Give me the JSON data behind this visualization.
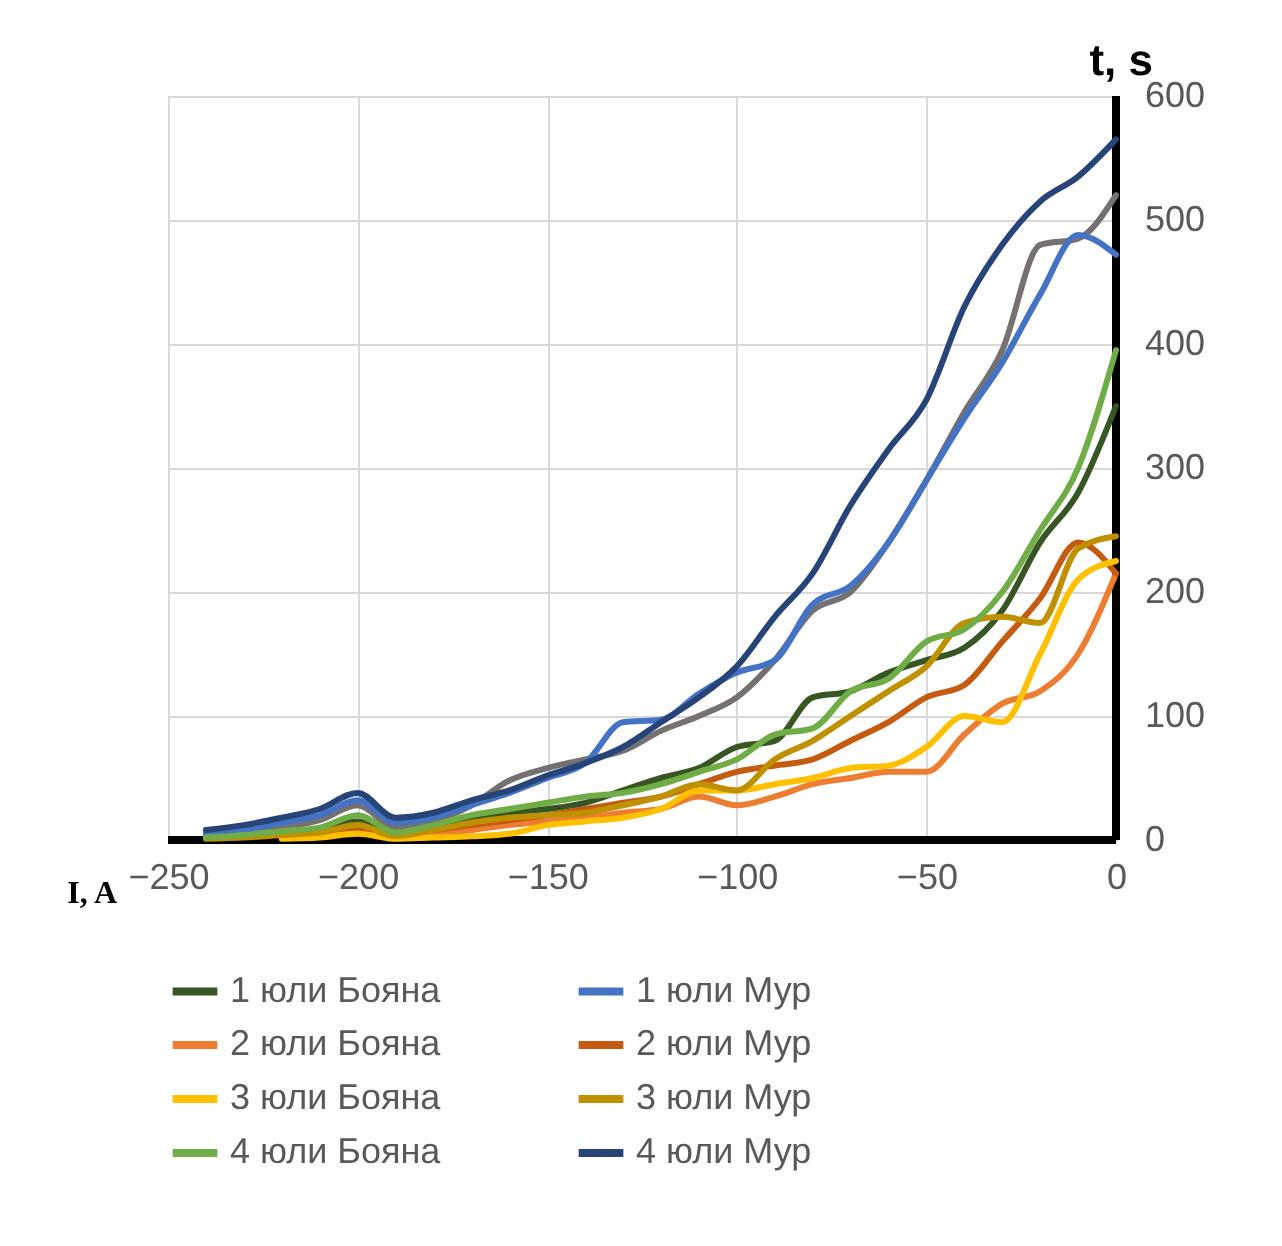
{
  "chart_data": {
    "type": "line",
    "xlabel": "I, A",
    "ylabel": "t, s",
    "x": [
      -240,
      -230,
      -220,
      -210,
      -200,
      -190,
      -180,
      -170,
      -160,
      -150,
      -140,
      -130,
      -120,
      -110,
      -100,
      -90,
      -80,
      -70,
      -60,
      -50,
      -40,
      -30,
      -20,
      -10,
      0
    ],
    "xlim": [
      -250,
      0
    ],
    "xticks": [
      -250,
      -200,
      -150,
      -100,
      -50,
      0
    ],
    "ylim": [
      0,
      600
    ],
    "yticks": [
      0,
      100,
      200,
      300,
      400,
      500,
      600
    ],
    "grid": true,
    "legend": "bottom",
    "line_style": "solid",
    "marker": "none",
    "series": [
      {
        "name": "1 юли Бояна",
        "color": "#375623",
        "values": [
          2,
          3,
          6,
          9,
          15,
          5,
          12,
          18,
          22,
          25,
          30,
          40,
          50,
          58,
          75,
          80,
          115,
          120,
          135,
          145,
          155,
          185,
          240,
          280,
          350
        ]
      },
      {
        "name": "1 юли Мур",
        "color": "#4472c4",
        "values": [
          5,
          8,
          14,
          20,
          32,
          14,
          18,
          28,
          38,
          50,
          62,
          95,
          97,
          118,
          135,
          145,
          190,
          205,
          240,
          290,
          340,
          385,
          440,
          488,
          472
        ]
      },
      {
        "name": "2 юли Бояна",
        "color": "#ed7d31",
        "values": [
          null,
          null,
          2,
          3,
          8,
          2,
          4,
          8,
          12,
          15,
          18,
          22,
          25,
          35,
          28,
          35,
          45,
          50,
          55,
          55,
          85,
          110,
          120,
          150,
          215
        ]
      },
      {
        "name": "2 юли Мур",
        "color": "#c55a11",
        "values": [
          null,
          null,
          5,
          7,
          10,
          3,
          8,
          12,
          16,
          20,
          25,
          30,
          35,
          45,
          55,
          60,
          65,
          80,
          95,
          115,
          125,
          160,
          195,
          240,
          215
        ]
      },
      {
        "name": "3 юли Бояна",
        "color": "#ffc000",
        "values": [
          null,
          null,
          1,
          2,
          5,
          1,
          2,
          3,
          5,
          12,
          15,
          18,
          25,
          40,
          40,
          45,
          50,
          58,
          60,
          75,
          100,
          95,
          150,
          210,
          225
        ]
      },
      {
        "name": "3 юли Мур",
        "color": "#bf9000",
        "values": [
          1,
          2,
          4,
          6,
          12,
          3,
          8,
          14,
          18,
          20,
          22,
          28,
          35,
          45,
          40,
          65,
          80,
          100,
          120,
          140,
          175,
          180,
          175,
          235,
          245
        ]
      },
      {
        "name": "4 юли Бояна",
        "color": "#70ad47",
        "values": [
          2,
          4,
          7,
          10,
          20,
          6,
          12,
          20,
          25,
          30,
          35,
          38,
          45,
          55,
          65,
          85,
          90,
          120,
          130,
          160,
          170,
          200,
          250,
          300,
          395
        ]
      },
      {
        "name": "4 юли Мур",
        "color": "#264478",
        "values": [
          8,
          12,
          18,
          25,
          38,
          18,
          22,
          32,
          40,
          52,
          62,
          75,
          95,
          115,
          140,
          180,
          215,
          270,
          315,
          355,
          430,
          480,
          515,
          535,
          565
        ]
      },
      {
        "color": "#767171",
        "values": [
          4,
          6,
          10,
          16,
          28,
          10,
          15,
          28,
          48,
          58,
          65,
          72,
          88,
          100,
          115,
          145,
          185,
          200,
          240,
          290,
          345,
          395,
          480,
          485,
          520
        ]
      }
    ]
  }
}
